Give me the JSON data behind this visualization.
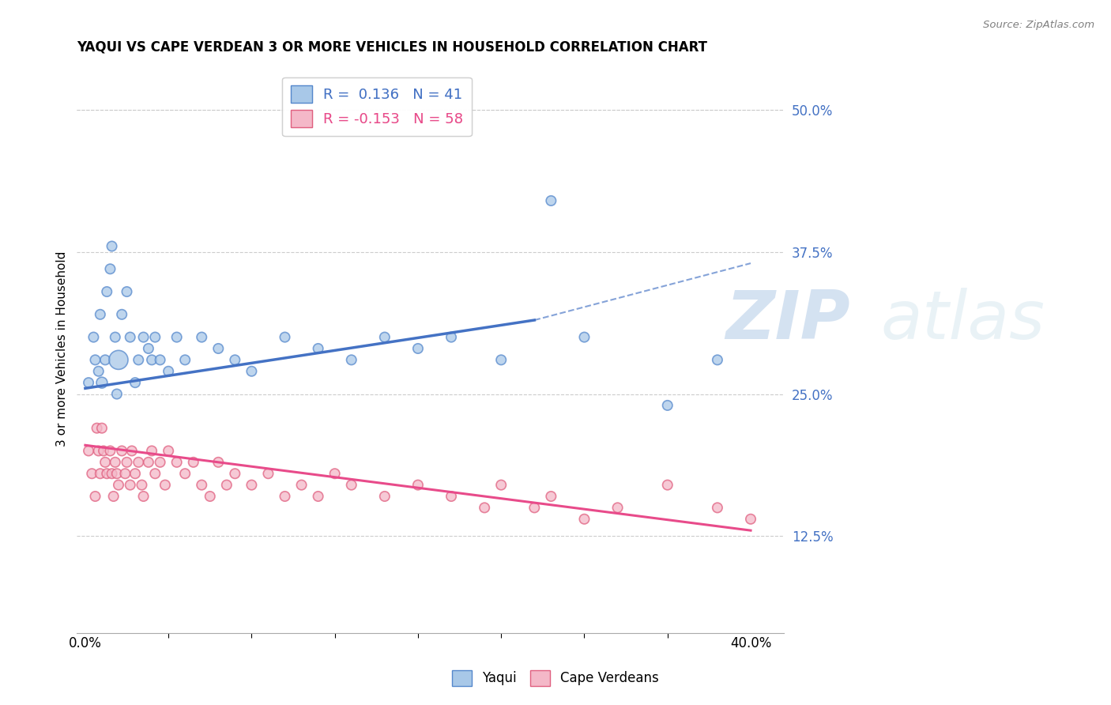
{
  "title": "YAQUI VS CAPE VERDEAN 3 OR MORE VEHICLES IN HOUSEHOLD CORRELATION CHART",
  "source": "Source: ZipAtlas.com",
  "ylabel_right_ticks": [
    0.125,
    0.25,
    0.375,
    0.5
  ],
  "ylabel_right_labels": [
    "12.5%",
    "25.0%",
    "37.5%",
    "50.0%"
  ],
  "xlim": [
    -0.005,
    0.42
  ],
  "ylim": [
    0.04,
    0.54
  ],
  "yaqui_color": "#a8c8e8",
  "cape_color": "#f4b8c8",
  "yaqui_edge": "#5588cc",
  "cape_edge": "#e06080",
  "yaqui_R": 0.136,
  "yaqui_N": 41,
  "cape_R": -0.153,
  "cape_N": 58,
  "blue_line_color": "#4472C4",
  "pink_line_color": "#E84B8A",
  "grid_color": "#cccccc",
  "bg_color": "#ffffff",
  "yaqui_x": [
    0.002,
    0.005,
    0.006,
    0.008,
    0.009,
    0.01,
    0.012,
    0.013,
    0.015,
    0.016,
    0.018,
    0.019,
    0.02,
    0.022,
    0.025,
    0.027,
    0.03,
    0.032,
    0.035,
    0.038,
    0.04,
    0.042,
    0.045,
    0.05,
    0.055,
    0.06,
    0.07,
    0.08,
    0.09,
    0.1,
    0.12,
    0.14,
    0.16,
    0.18,
    0.2,
    0.22,
    0.25,
    0.28,
    0.3,
    0.35,
    0.38
  ],
  "yaqui_y": [
    0.26,
    0.3,
    0.28,
    0.27,
    0.32,
    0.26,
    0.28,
    0.34,
    0.36,
    0.38,
    0.3,
    0.25,
    0.28,
    0.32,
    0.34,
    0.3,
    0.26,
    0.28,
    0.3,
    0.29,
    0.28,
    0.3,
    0.28,
    0.27,
    0.3,
    0.28,
    0.3,
    0.29,
    0.28,
    0.27,
    0.3,
    0.29,
    0.28,
    0.3,
    0.29,
    0.3,
    0.28,
    0.42,
    0.3,
    0.24,
    0.28
  ],
  "yaqui_sizes": [
    80,
    80,
    80,
    80,
    80,
    100,
    80,
    80,
    80,
    80,
    80,
    80,
    300,
    80,
    80,
    80,
    80,
    80,
    80,
    80,
    80,
    80,
    80,
    80,
    80,
    80,
    80,
    80,
    80,
    80,
    80,
    80,
    80,
    80,
    80,
    80,
    80,
    80,
    80,
    80,
    80
  ],
  "cape_x": [
    0.002,
    0.004,
    0.006,
    0.007,
    0.008,
    0.009,
    0.01,
    0.011,
    0.012,
    0.013,
    0.015,
    0.016,
    0.017,
    0.018,
    0.019,
    0.02,
    0.022,
    0.024,
    0.025,
    0.027,
    0.028,
    0.03,
    0.032,
    0.034,
    0.035,
    0.038,
    0.04,
    0.042,
    0.045,
    0.048,
    0.05,
    0.055,
    0.06,
    0.065,
    0.07,
    0.075,
    0.08,
    0.085,
    0.09,
    0.1,
    0.11,
    0.12,
    0.13,
    0.14,
    0.15,
    0.16,
    0.18,
    0.2,
    0.22,
    0.24,
    0.25,
    0.27,
    0.28,
    0.3,
    0.32,
    0.35,
    0.38,
    0.4
  ],
  "cape_y": [
    0.2,
    0.18,
    0.16,
    0.22,
    0.2,
    0.18,
    0.22,
    0.2,
    0.19,
    0.18,
    0.2,
    0.18,
    0.16,
    0.19,
    0.18,
    0.17,
    0.2,
    0.18,
    0.19,
    0.17,
    0.2,
    0.18,
    0.19,
    0.17,
    0.16,
    0.19,
    0.2,
    0.18,
    0.19,
    0.17,
    0.2,
    0.19,
    0.18,
    0.19,
    0.17,
    0.16,
    0.19,
    0.17,
    0.18,
    0.17,
    0.18,
    0.16,
    0.17,
    0.16,
    0.18,
    0.17,
    0.16,
    0.17,
    0.16,
    0.15,
    0.17,
    0.15,
    0.16,
    0.14,
    0.15,
    0.17,
    0.15,
    0.14
  ],
  "cape_sizes": [
    80,
    80,
    80,
    80,
    80,
    80,
    80,
    80,
    80,
    80,
    80,
    80,
    80,
    80,
    80,
    80,
    80,
    80,
    80,
    80,
    80,
    80,
    80,
    80,
    80,
    80,
    80,
    80,
    80,
    80,
    80,
    80,
    80,
    80,
    80,
    80,
    80,
    80,
    80,
    80,
    80,
    80,
    80,
    80,
    80,
    80,
    80,
    80,
    80,
    80,
    80,
    80,
    80,
    80,
    80,
    80,
    80,
    80
  ]
}
